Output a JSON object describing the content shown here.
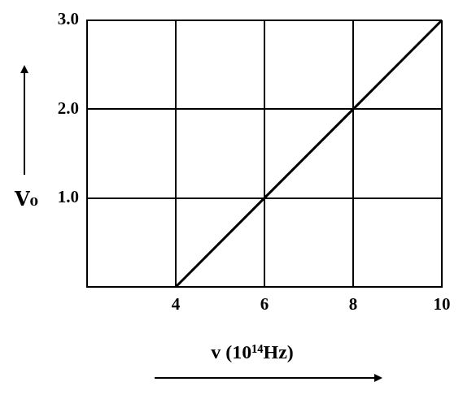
{
  "chart_data": {
    "type": "line",
    "x_label": "v (10¹⁴Hz)",
    "y_label": "V₀",
    "x": [
      4,
      6,
      8,
      10
    ],
    "values": [
      0,
      1,
      2,
      3
    ],
    "color": "#000000",
    "xlim": [
      2,
      10
    ],
    "xticks": [
      4,
      6,
      8,
      10
    ],
    "ylim": [
      0,
      3
    ],
    "yticks": [
      {
        "value": 1,
        "label": "1.0"
      },
      {
        "value": 2,
        "label": "2.0"
      },
      {
        "value": 3,
        "label": "3.0"
      }
    ],
    "grid": true
  }
}
